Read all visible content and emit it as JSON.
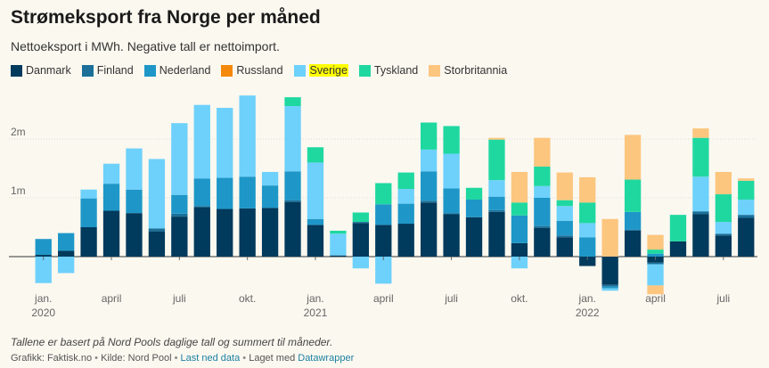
{
  "title": "Strømeksport fra Norge per måned",
  "subtitle": "Nettoeksport i MWh. Negative tall er nettoimport.",
  "highlight_color": "#ffff00",
  "footer": {
    "note": "Tallene er basert på Nord Pools daglige tall og summert til måneder.",
    "grafikk": "Grafikk: Faktisk.no",
    "kilde": "Kilde: Nord Pool",
    "download_label": "Last ned data",
    "made_with": "Laget med",
    "tool_label": "Datawrapper",
    "separator": "•"
  },
  "chart_data": {
    "type": "bar",
    "stacked": true,
    "title": "Strømeksport fra Norge per måned",
    "subtitle": "Nettoeksport i MWh. Negative tall er nettoimport.",
    "legend_position": "top",
    "grid": true,
    "ylim": [
      -600000,
      2900000
    ],
    "y_ticks": [
      {
        "value": 0,
        "label": ""
      },
      {
        "value": 1000000,
        "label": "1m"
      },
      {
        "value": 2000000,
        "label": "2m"
      }
    ],
    "x_ticks": [
      {
        "index": 0,
        "label": "jan.",
        "sublabel": "2020"
      },
      {
        "index": 3,
        "label": "april",
        "sublabel": ""
      },
      {
        "index": 6,
        "label": "juli",
        "sublabel": ""
      },
      {
        "index": 9,
        "label": "okt.",
        "sublabel": ""
      },
      {
        "index": 12,
        "label": "jan.",
        "sublabel": "2021"
      },
      {
        "index": 15,
        "label": "april",
        "sublabel": ""
      },
      {
        "index": 18,
        "label": "juli",
        "sublabel": ""
      },
      {
        "index": 21,
        "label": "okt.",
        "sublabel": ""
      },
      {
        "index": 24,
        "label": "jan.",
        "sublabel": "2022"
      },
      {
        "index": 27,
        "label": "april",
        "sublabel": ""
      },
      {
        "index": 30,
        "label": "juli",
        "sublabel": ""
      }
    ],
    "categories": [
      "2020-01",
      "2020-02",
      "2020-03",
      "2020-04",
      "2020-05",
      "2020-06",
      "2020-07",
      "2020-08",
      "2020-09",
      "2020-10",
      "2020-11",
      "2020-12",
      "2021-01",
      "2021-02",
      "2021-03",
      "2021-04",
      "2021-05",
      "2021-06",
      "2021-07",
      "2021-08",
      "2021-09",
      "2021-10",
      "2021-11",
      "2021-12",
      "2022-01",
      "2022-02",
      "2022-03",
      "2022-04",
      "2022-05",
      "2022-06",
      "2022-07",
      "2022-08"
    ],
    "series": [
      {
        "name": "Danmark",
        "color": "#003a5c",
        "highlight": false,
        "values": [
          30000,
          100000,
          500000,
          780000,
          740000,
          430000,
          680000,
          840000,
          810000,
          820000,
          830000,
          930000,
          540000,
          20000,
          570000,
          540000,
          560000,
          920000,
          720000,
          670000,
          760000,
          230000,
          490000,
          330000,
          -160000,
          -480000,
          440000,
          -100000,
          260000,
          720000,
          360000,
          660000
        ]
      },
      {
        "name": "Finland",
        "color": "#1b6f99",
        "highlight": false,
        "values": [
          0,
          0,
          0,
          0,
          0,
          50000,
          50000,
          20000,
          0,
          0,
          0,
          30000,
          0,
          0,
          20000,
          0,
          0,
          30000,
          20000,
          0,
          30000,
          0,
          30000,
          30000,
          0,
          -30000,
          20000,
          -30000,
          0,
          50000,
          30000,
          50000
        ]
      },
      {
        "name": "Nederland",
        "color": "#1e97c8",
        "highlight": false,
        "values": [
          270000,
          300000,
          490000,
          460000,
          400000,
          0,
          320000,
          470000,
          530000,
          540000,
          380000,
          490000,
          100000,
          0,
          0,
          350000,
          340000,
          500000,
          420000,
          300000,
          230000,
          470000,
          480000,
          250000,
          330000,
          -30000,
          300000,
          50000,
          0,
          0,
          0,
          0
        ]
      },
      {
        "name": "Russland",
        "color": "#f5890c",
        "highlight": false,
        "values": [
          0,
          0,
          0,
          0,
          0,
          0,
          0,
          0,
          0,
          0,
          0,
          0,
          0,
          0,
          0,
          0,
          0,
          0,
          0,
          0,
          0,
          0,
          0,
          0,
          0,
          0,
          0,
          0,
          0,
          0,
          0,
          0
        ]
      },
      {
        "name": "Sverige",
        "color": "#6dd1fb",
        "highlight": true,
        "values": [
          -450000,
          -280000,
          150000,
          340000,
          700000,
          1180000,
          1220000,
          1250000,
          1190000,
          1380000,
          230000,
          1110000,
          960000,
          370000,
          -200000,
          -460000,
          250000,
          370000,
          590000,
          0,
          280000,
          -200000,
          200000,
          250000,
          240000,
          -40000,
          0,
          -360000,
          0,
          590000,
          200000,
          260000
        ]
      },
      {
        "name": "Tyskland",
        "color": "#1fd8a0",
        "highlight": false,
        "values": [
          0,
          0,
          0,
          0,
          0,
          0,
          0,
          0,
          0,
          0,
          0,
          150000,
          260000,
          50000,
          160000,
          360000,
          280000,
          460000,
          470000,
          200000,
          690000,
          220000,
          330000,
          100000,
          350000,
          0,
          550000,
          70000,
          450000,
          660000,
          470000,
          320000
        ]
      },
      {
        "name": "Storbritannia",
        "color": "#fcc67f",
        "highlight": false,
        "values": [
          0,
          0,
          0,
          0,
          0,
          0,
          0,
          0,
          0,
          0,
          0,
          0,
          0,
          0,
          0,
          0,
          0,
          0,
          0,
          0,
          30000,
          520000,
          490000,
          470000,
          430000,
          640000,
          760000,
          250000,
          0,
          160000,
          380000,
          40000
        ]
      }
    ],
    "negative_extra": [
      {
        "series": "Storbritannia",
        "index": 27,
        "value": -150000
      }
    ]
  }
}
